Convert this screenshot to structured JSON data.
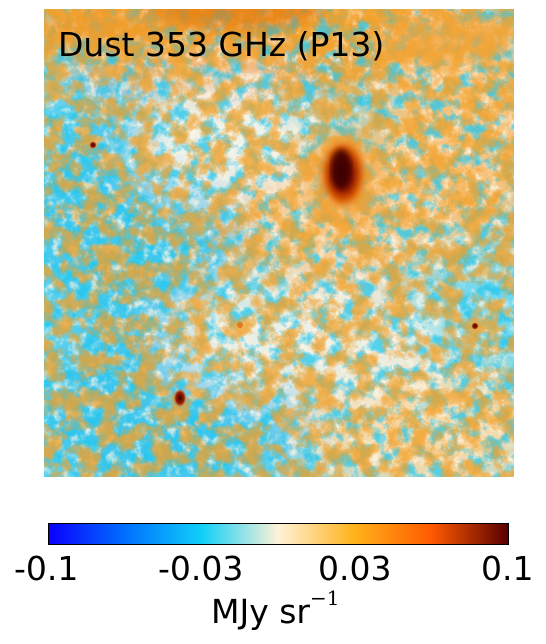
{
  "map": {
    "title": "Dust 353 GHz (P13)"
  },
  "colorbar": {
    "colormap": [
      "#0a00ff",
      "#0070ff",
      "#10d0f8",
      "#fff2d8",
      "#ffb21a",
      "#ff5a00",
      "#5a0000"
    ],
    "ticks": [
      "-0.1",
      "-0.03",
      "0.03",
      "0.1"
    ],
    "unit_main": "MJy sr",
    "unit_exponent": "−1"
  }
}
